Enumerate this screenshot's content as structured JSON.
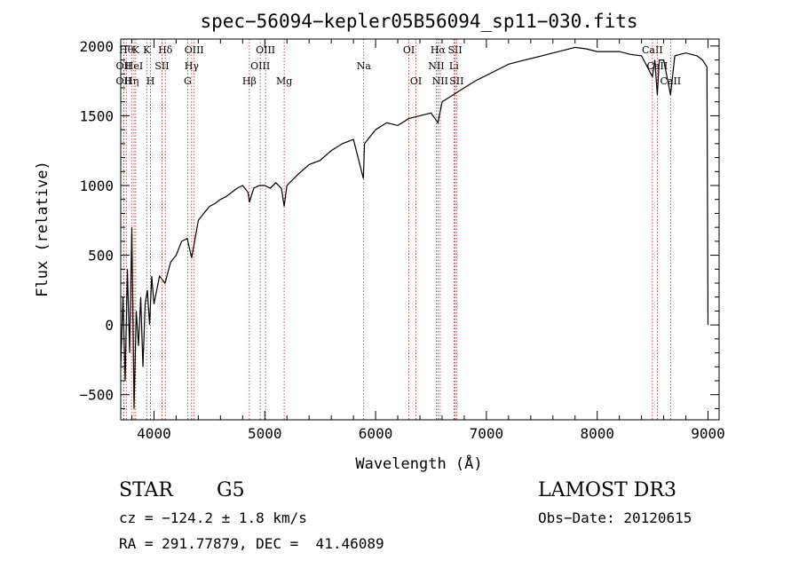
{
  "chart_data": {
    "type": "line",
    "title": "spec−56094−kepler05B56094_sp11−030.fits",
    "xlabel": "Wavelength (Å)",
    "ylabel": "Flux (relative)",
    "xlim": [
      3700,
      9100
    ],
    "ylim": [
      -680,
      2050
    ],
    "xticks": [
      4000,
      5000,
      6000,
      7000,
      8000,
      9000
    ],
    "xtick_labels": [
      "4000",
      "5000",
      "6000",
      "7000",
      "8000",
      "9000"
    ],
    "yticks": [
      -500,
      0,
      500,
      1000,
      1500,
      2000
    ],
    "ytick_labels": [
      "−500",
      "0",
      "500",
      "1000",
      "1500",
      "2000"
    ],
    "series": [
      {
        "name": "flux",
        "x": [
          3700,
          3720,
          3740,
          3760,
          3780,
          3800,
          3820,
          3840,
          3860,
          3880,
          3900,
          3920,
          3940,
          3960,
          3980,
          4000,
          4050,
          4100,
          4150,
          4200,
          4250,
          4300,
          4340,
          4400,
          4450,
          4500,
          4550,
          4600,
          4650,
          4700,
          4750,
          4800,
          4850,
          4861,
          4900,
          4950,
          5000,
          5050,
          5100,
          5150,
          5175,
          5200,
          5300,
          5400,
          5500,
          5600,
          5700,
          5800,
          5890,
          5900,
          6000,
          6100,
          6200,
          6300,
          6400,
          6500,
          6563,
          6600,
          6700,
          6800,
          6900,
          7000,
          7100,
          7200,
          7300,
          7400,
          7500,
          7600,
          7700,
          7800,
          7900,
          8000,
          8100,
          8200,
          8300,
          8400,
          8498,
          8520,
          8542,
          8560,
          8600,
          8662,
          8700,
          8800,
          8900,
          8950,
          8990,
          9000
        ],
        "y": [
          -300,
          200,
          -400,
          400,
          -200,
          700,
          -600,
          100,
          -150,
          200,
          -300,
          150,
          250,
          0,
          350,
          150,
          350,
          300,
          450,
          500,
          600,
          620,
          480,
          750,
          800,
          850,
          870,
          900,
          920,
          950,
          980,
          1000,
          950,
          880,
          980,
          1000,
          1000,
          980,
          1020,
          980,
          850,
          1000,
          1080,
          1150,
          1180,
          1250,
          1300,
          1330,
          1050,
          1300,
          1400,
          1450,
          1430,
          1480,
          1500,
          1520,
          1450,
          1600,
          1650,
          1700,
          1750,
          1790,
          1830,
          1870,
          1890,
          1910,
          1930,
          1950,
          1970,
          1990,
          1980,
          1960,
          1960,
          1960,
          1940,
          1930,
          1780,
          1900,
          1650,
          1900,
          1900,
          1650,
          1930,
          1950,
          1930,
          1900,
          1850,
          0
        ]
      }
    ],
    "lines": [
      {
        "x": 3750,
        "label": "Hθ",
        "row": 1
      },
      {
        "x": 3727,
        "label": "OII",
        "row": 2
      },
      {
        "x": 3727,
        "label": "OII",
        "row": 3
      },
      {
        "x": 3798,
        "label": "Hη",
        "row": 3
      },
      {
        "x": 3820,
        "label": "HeI",
        "row": 2
      },
      {
        "x": 3835,
        "label": "K",
        "row": 1
      },
      {
        "x": 3934,
        "label": "K",
        "row": 1
      },
      {
        "x": 3969,
        "label": "H",
        "row": 3
      },
      {
        "x": 4072,
        "label": "SII",
        "row": 2
      },
      {
        "x": 4102,
        "label": "Hδ",
        "row": 1
      },
      {
        "x": 4304,
        "label": "G",
        "row": 3
      },
      {
        "x": 4340,
        "label": "Hγ",
        "row": 2
      },
      {
        "x": 4363,
        "label": "OIII",
        "row": 1
      },
      {
        "x": 4861,
        "label": "Hβ",
        "row": 3
      },
      {
        "x": 4959,
        "label": "OIII",
        "row": 2
      },
      {
        "x": 5007,
        "label": "OIII",
        "row": 1
      },
      {
        "x": 5175,
        "label": "Mg",
        "row": 3
      },
      {
        "x": 5893,
        "label": "Na",
        "row": 2
      },
      {
        "x": 6300,
        "label": "OI",
        "row": 1
      },
      {
        "x": 6364,
        "label": "OI",
        "row": 3
      },
      {
        "x": 6548,
        "label": "NII",
        "row": 2
      },
      {
        "x": 6563,
        "label": "Hα",
        "row": 1
      },
      {
        "x": 6583,
        "label": "NII",
        "row": 3
      },
      {
        "x": 6707,
        "label": "Li",
        "row": 2
      },
      {
        "x": 6717,
        "label": "SII",
        "row": 1
      },
      {
        "x": 6731,
        "label": "SII",
        "row": 3
      },
      {
        "x": 8498,
        "label": "CaII",
        "row": 1
      },
      {
        "x": 8542,
        "label": "CaII",
        "row": 2
      },
      {
        "x": 8662,
        "label": "CaII",
        "row": 3
      }
    ]
  },
  "info": {
    "class_label": "STAR",
    "subclass": "G5",
    "survey": "LAMOST DR3",
    "cz": "cz = −124.2 ± 1.8 km/s",
    "obs_date": "Obs−Date: 20120615",
    "radec": "RA = 291.77879, DEC =  41.46089"
  }
}
